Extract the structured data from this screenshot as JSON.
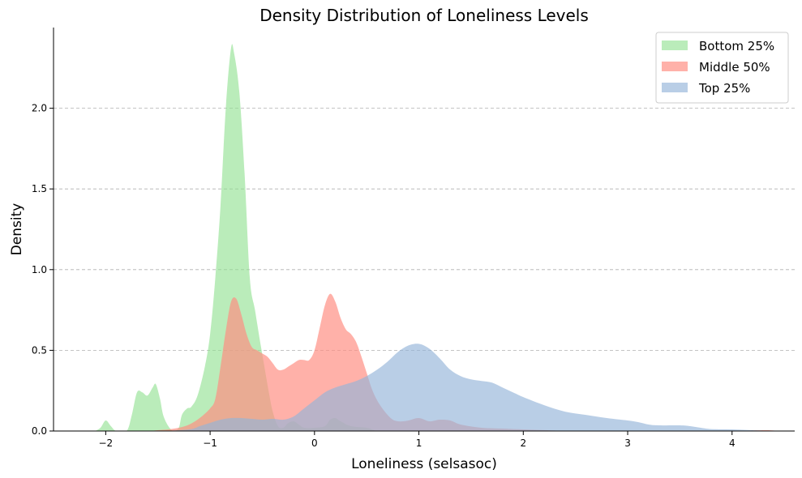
{
  "chart_data": {
    "type": "area",
    "title": "Density Distribution of Loneliness Levels",
    "xlabel": "Loneliness (selsasoc)",
    "ylabel": "Density",
    "xlim": [
      -2.5,
      4.6
    ],
    "ylim": [
      0,
      2.5
    ],
    "xticks": [
      -2,
      -1,
      0,
      1,
      2,
      3,
      4
    ],
    "xtick_labels": [
      "−2",
      "−1",
      "0",
      "1",
      "2",
      "3",
      "4"
    ],
    "yticks": [
      0,
      0.5,
      1,
      1.5,
      2
    ],
    "ytick_labels": [
      "0.0",
      "0.5",
      "1.0",
      "1.5",
      "2.0"
    ],
    "grid": "horizontal-dashed",
    "legend_position": "top-right",
    "series": [
      {
        "name": "Bottom 25%",
        "color": "#90e090",
        "opacity": 0.62,
        "points": [
          [
            -2.1,
            0
          ],
          [
            -2.05,
            0.02
          ],
          [
            -2.0,
            0.065
          ],
          [
            -1.95,
            0.03
          ],
          [
            -1.9,
            0.0
          ],
          [
            -1.8,
            0.0
          ],
          [
            -1.75,
            0.1
          ],
          [
            -1.7,
            0.24
          ],
          [
            -1.65,
            0.24
          ],
          [
            -1.6,
            0.22
          ],
          [
            -1.55,
            0.27
          ],
          [
            -1.52,
            0.29
          ],
          [
            -1.48,
            0.2
          ],
          [
            -1.45,
            0.1
          ],
          [
            -1.4,
            0.03
          ],
          [
            -1.35,
            0.0
          ],
          [
            -1.3,
            0.02
          ],
          [
            -1.27,
            0.1
          ],
          [
            -1.22,
            0.14
          ],
          [
            -1.18,
            0.15
          ],
          [
            -1.12,
            0.22
          ],
          [
            -1.05,
            0.4
          ],
          [
            -1.0,
            0.6
          ],
          [
            -0.95,
            0.95
          ],
          [
            -0.9,
            1.4
          ],
          [
            -0.85,
            2.0
          ],
          [
            -0.8,
            2.37
          ],
          [
            -0.77,
            2.34
          ],
          [
            -0.72,
            2.1
          ],
          [
            -0.67,
            1.6
          ],
          [
            -0.62,
            0.95
          ],
          [
            -0.57,
            0.75
          ],
          [
            -0.52,
            0.55
          ],
          [
            -0.48,
            0.4
          ],
          [
            -0.44,
            0.25
          ],
          [
            -0.4,
            0.12
          ],
          [
            -0.35,
            0.03
          ],
          [
            -0.3,
            0.02
          ],
          [
            -0.25,
            0.05
          ],
          [
            -0.2,
            0.06
          ],
          [
            -0.15,
            0.04
          ],
          [
            -0.1,
            0.02
          ],
          [
            0.0,
            0.02
          ],
          [
            0.1,
            0.03
          ],
          [
            0.15,
            0.07
          ],
          [
            0.2,
            0.08
          ],
          [
            0.25,
            0.06
          ],
          [
            0.35,
            0.03
          ],
          [
            0.5,
            0.02
          ],
          [
            0.6,
            0.0
          ],
          [
            0.7,
            0.0
          ]
        ]
      },
      {
        "name": "Middle 50%",
        "color": "#ff8c80",
        "opacity": 0.68,
        "points": [
          [
            -2.0,
            0
          ],
          [
            -1.8,
            0.0
          ],
          [
            -1.6,
            0.0
          ],
          [
            -1.5,
            0.005
          ],
          [
            -1.4,
            0.01
          ],
          [
            -1.3,
            0.02
          ],
          [
            -1.2,
            0.04
          ],
          [
            -1.1,
            0.08
          ],
          [
            -1.0,
            0.14
          ],
          [
            -0.95,
            0.2
          ],
          [
            -0.9,
            0.4
          ],
          [
            -0.85,
            0.62
          ],
          [
            -0.8,
            0.8
          ],
          [
            -0.75,
            0.82
          ],
          [
            -0.7,
            0.72
          ],
          [
            -0.65,
            0.6
          ],
          [
            -0.6,
            0.52
          ],
          [
            -0.55,
            0.5
          ],
          [
            -0.5,
            0.48
          ],
          [
            -0.45,
            0.46
          ],
          [
            -0.4,
            0.42
          ],
          [
            -0.35,
            0.38
          ],
          [
            -0.3,
            0.38
          ],
          [
            -0.25,
            0.4
          ],
          [
            -0.2,
            0.42
          ],
          [
            -0.15,
            0.44
          ],
          [
            -0.1,
            0.44
          ],
          [
            -0.05,
            0.44
          ],
          [
            0.0,
            0.5
          ],
          [
            0.05,
            0.64
          ],
          [
            0.1,
            0.78
          ],
          [
            0.15,
            0.85
          ],
          [
            0.2,
            0.8
          ],
          [
            0.25,
            0.7
          ],
          [
            0.3,
            0.63
          ],
          [
            0.35,
            0.6
          ],
          [
            0.4,
            0.55
          ],
          [
            0.45,
            0.46
          ],
          [
            0.5,
            0.36
          ],
          [
            0.55,
            0.26
          ],
          [
            0.6,
            0.19
          ],
          [
            0.65,
            0.14
          ],
          [
            0.7,
            0.1
          ],
          [
            0.75,
            0.07
          ],
          [
            0.8,
            0.06
          ],
          [
            0.85,
            0.06
          ],
          [
            0.9,
            0.065
          ],
          [
            1.0,
            0.08
          ],
          [
            1.1,
            0.06
          ],
          [
            1.2,
            0.07
          ],
          [
            1.3,
            0.065
          ],
          [
            1.4,
            0.04
          ],
          [
            1.6,
            0.02
          ],
          [
            1.8,
            0.015
          ],
          [
            2.0,
            0.01
          ],
          [
            2.5,
            0.0
          ],
          [
            3.0,
            0.0
          ],
          [
            3.5,
            0.0
          ],
          [
            4.0,
            0.0
          ],
          [
            4.2,
            0.004
          ],
          [
            4.35,
            0.005
          ],
          [
            4.45,
            0.0
          ]
        ]
      },
      {
        "name": "Top 25%",
        "color": "#94b4d8",
        "opacity": 0.65,
        "points": [
          [
            -2.0,
            0
          ],
          [
            -1.5,
            0.0
          ],
          [
            -1.2,
            0.01
          ],
          [
            -1.1,
            0.03
          ],
          [
            -1.0,
            0.05
          ],
          [
            -0.9,
            0.07
          ],
          [
            -0.8,
            0.08
          ],
          [
            -0.7,
            0.08
          ],
          [
            -0.6,
            0.075
          ],
          [
            -0.5,
            0.07
          ],
          [
            -0.4,
            0.075
          ],
          [
            -0.3,
            0.07
          ],
          [
            -0.2,
            0.09
          ],
          [
            -0.1,
            0.14
          ],
          [
            0.0,
            0.19
          ],
          [
            0.1,
            0.24
          ],
          [
            0.2,
            0.27
          ],
          [
            0.3,
            0.29
          ],
          [
            0.4,
            0.31
          ],
          [
            0.5,
            0.34
          ],
          [
            0.6,
            0.38
          ],
          [
            0.7,
            0.43
          ],
          [
            0.8,
            0.49
          ],
          [
            0.9,
            0.53
          ],
          [
            1.0,
            0.54
          ],
          [
            1.1,
            0.51
          ],
          [
            1.2,
            0.45
          ],
          [
            1.3,
            0.38
          ],
          [
            1.4,
            0.34
          ],
          [
            1.5,
            0.32
          ],
          [
            1.6,
            0.31
          ],
          [
            1.7,
            0.3
          ],
          [
            1.8,
            0.27
          ],
          [
            1.9,
            0.24
          ],
          [
            2.0,
            0.21
          ],
          [
            2.2,
            0.16
          ],
          [
            2.4,
            0.12
          ],
          [
            2.6,
            0.1
          ],
          [
            2.8,
            0.08
          ],
          [
            3.0,
            0.065
          ],
          [
            3.1,
            0.055
          ],
          [
            3.2,
            0.04
          ],
          [
            3.3,
            0.035
          ],
          [
            3.5,
            0.035
          ],
          [
            3.6,
            0.03
          ],
          [
            3.7,
            0.02
          ],
          [
            3.8,
            0.012
          ],
          [
            4.0,
            0.01
          ],
          [
            4.2,
            0.005
          ],
          [
            4.4,
            0.0
          ]
        ]
      }
    ]
  }
}
